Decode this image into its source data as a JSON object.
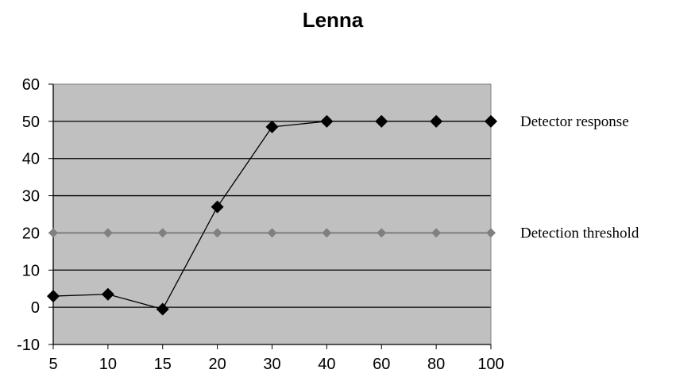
{
  "chart_data": {
    "type": "line",
    "title": "Lenna",
    "xlabel": "",
    "ylabel": "",
    "categories": [
      "5",
      "10",
      "15",
      "20",
      "30",
      "40",
      "60",
      "80",
      "100"
    ],
    "ylim": [
      -10,
      60
    ],
    "yticks": [
      "-10",
      "0",
      "10",
      "20",
      "30",
      "40",
      "50",
      "60"
    ],
    "grid": true,
    "legend_position": "right",
    "plot_background": "#c0c0c0",
    "series": [
      {
        "name": "Detector response",
        "values": [
          3,
          3.5,
          -0.5,
          27,
          48.5,
          50,
          50,
          50,
          50
        ],
        "color": "#000000",
        "marker": "diamond"
      },
      {
        "name": "Detection threshold",
        "values": [
          20,
          20,
          20,
          20,
          20,
          20,
          20,
          20,
          20
        ],
        "color": "#808080",
        "marker": "diamond"
      }
    ]
  }
}
